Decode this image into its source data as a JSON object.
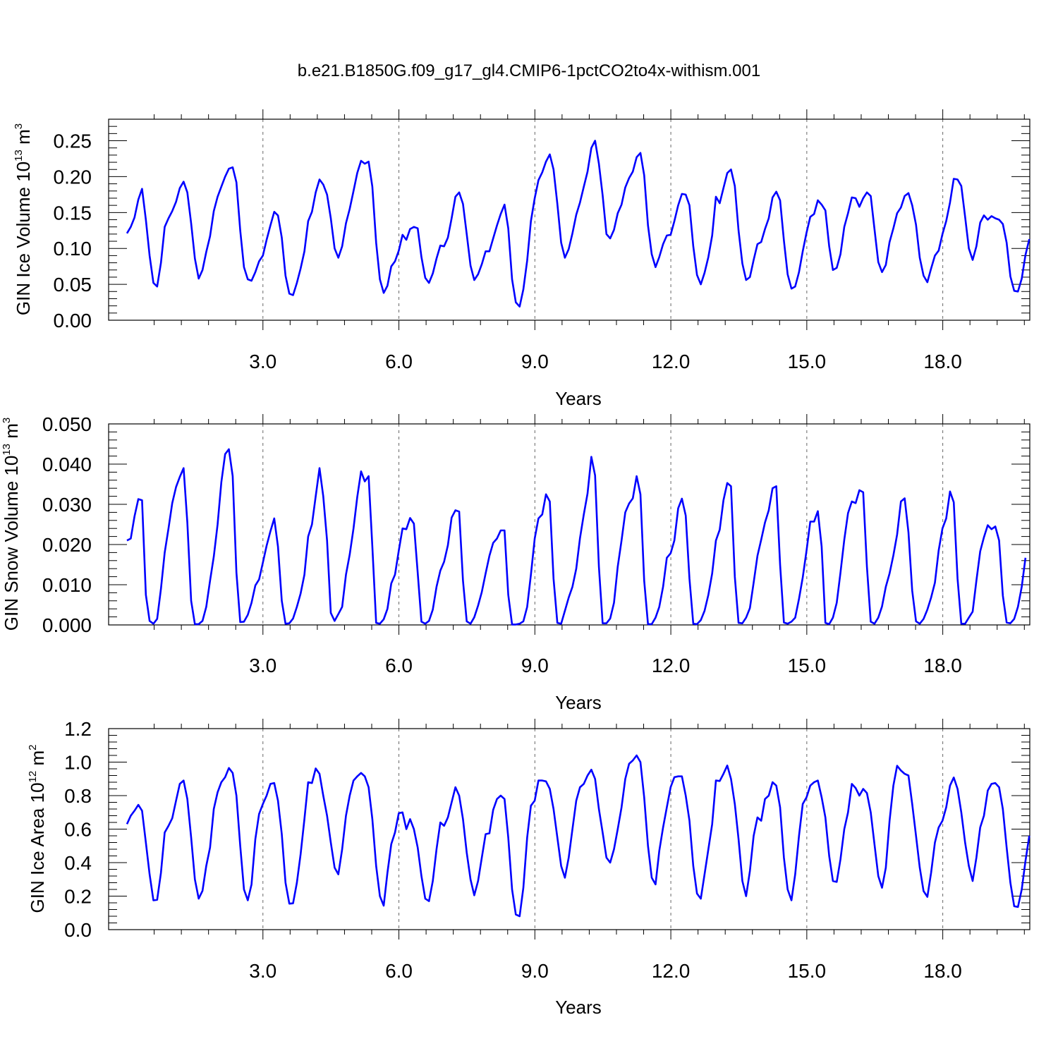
{
  "title": "b.e21.B1850G.f09_g17_gl4.CMIP6-1pctCO2to4x-withism.001",
  "colors": {
    "series": "#0000ff",
    "axis": "#000000",
    "grid": "#666666"
  },
  "chart_data": [
    {
      "type": "line",
      "name": "ice-volume",
      "ylabel": "GIN Ice Volume 10",
      "ylabel_exp": "13",
      "ylabel_unit": " m",
      "ylabel_unit_exp": "3",
      "xlabel": "Years",
      "xlim": [
        0,
        19.92
      ],
      "ylim": [
        0,
        0.28
      ],
      "xticks": [
        3,
        6,
        9,
        12,
        15,
        18
      ],
      "xtick_labels": [
        "3.0",
        "6.0",
        "9.0",
        "12.0",
        "15.0",
        "18.0"
      ],
      "yticks": [
        0,
        0.05,
        0.1,
        0.15,
        0.2,
        0.25
      ],
      "ytick_labels": [
        "0.00",
        "0.05",
        "0.10",
        "0.15",
        "0.20",
        "0.25"
      ],
      "grid": "vertical dashed at x ticks",
      "x_start": 0,
      "x_step": 0.0833,
      "values": [
        0.121,
        0.13,
        0.143,
        0.168,
        0.183,
        0.14,
        0.09,
        0.052,
        0.047,
        0.08,
        0.13,
        0.142,
        0.152,
        0.165,
        0.184,
        0.193,
        0.178,
        0.135,
        0.086,
        0.058,
        0.07,
        0.095,
        0.117,
        0.152,
        0.172,
        0.186,
        0.2,
        0.211,
        0.213,
        0.192,
        0.125,
        0.074,
        0.057,
        0.055,
        0.067,
        0.082,
        0.09,
        0.112,
        0.132,
        0.151,
        0.146,
        0.115,
        0.062,
        0.037,
        0.035,
        0.052,
        0.072,
        0.096,
        0.138,
        0.151,
        0.178,
        0.196,
        0.189,
        0.175,
        0.142,
        0.1,
        0.087,
        0.103,
        0.135,
        0.155,
        0.18,
        0.205,
        0.222,
        0.218,
        0.221,
        0.186,
        0.108,
        0.057,
        0.038,
        0.048,
        0.075,
        0.082,
        0.097,
        0.119,
        0.112,
        0.127,
        0.13,
        0.128,
        0.088,
        0.059,
        0.052,
        0.065,
        0.086,
        0.104,
        0.103,
        0.115,
        0.142,
        0.172,
        0.178,
        0.162,
        0.12,
        0.076,
        0.056,
        0.064,
        0.078,
        0.096,
        0.096,
        0.114,
        0.132,
        0.148,
        0.161,
        0.128,
        0.057,
        0.025,
        0.019,
        0.043,
        0.083,
        0.138,
        0.17,
        0.195,
        0.206,
        0.221,
        0.231,
        0.21,
        0.162,
        0.108,
        0.087,
        0.099,
        0.121,
        0.147,
        0.164,
        0.186,
        0.207,
        0.24,
        0.25,
        0.218,
        0.174,
        0.12,
        0.114,
        0.126,
        0.149,
        0.161,
        0.185,
        0.198,
        0.207,
        0.227,
        0.233,
        0.202,
        0.132,
        0.092,
        0.074,
        0.088,
        0.106,
        0.118,
        0.119,
        0.138,
        0.16,
        0.176,
        0.175,
        0.16,
        0.103,
        0.063,
        0.05,
        0.066,
        0.088,
        0.118,
        0.172,
        0.163,
        0.184,
        0.205,
        0.21,
        0.187,
        0.125,
        0.079,
        0.056,
        0.06,
        0.084,
        0.106,
        0.109,
        0.127,
        0.142,
        0.171,
        0.179,
        0.167,
        0.111,
        0.064,
        0.044,
        0.047,
        0.067,
        0.096,
        0.122,
        0.144,
        0.148,
        0.167,
        0.161,
        0.153,
        0.103,
        0.07,
        0.073,
        0.092,
        0.13,
        0.149,
        0.171,
        0.17,
        0.158,
        0.17,
        0.178,
        0.173,
        0.127,
        0.081,
        0.067,
        0.077,
        0.109,
        0.128,
        0.149,
        0.157,
        0.173,
        0.177,
        0.16,
        0.133,
        0.087,
        0.062,
        0.053,
        0.072,
        0.09,
        0.097,
        0.12,
        0.138,
        0.164,
        0.197,
        0.196,
        0.187,
        0.144,
        0.1,
        0.084,
        0.103,
        0.136,
        0.146,
        0.14,
        0.145,
        0.142,
        0.14,
        0.134,
        0.108,
        0.061,
        0.041,
        0.04,
        0.058,
        0.091,
        0.113
      ]
    },
    {
      "type": "line",
      "name": "snow-volume",
      "ylabel": "GIN Snow Volume 10",
      "ylabel_exp": "13",
      "ylabel_unit": " m",
      "ylabel_unit_exp": "3",
      "xlabel": "Years",
      "xlim": [
        0,
        19.92
      ],
      "ylim": [
        0,
        0.05
      ],
      "xticks": [
        3,
        6,
        9,
        12,
        15,
        18
      ],
      "xtick_labels": [
        "3.0",
        "6.0",
        "9.0",
        "12.0",
        "15.0",
        "18.0"
      ],
      "yticks": [
        0,
        0.01,
        0.02,
        0.03,
        0.04,
        0.05
      ],
      "ytick_labels": [
        "0.000",
        "0.010",
        "0.020",
        "0.030",
        "0.040",
        "0.050"
      ],
      "grid": "vertical dashed at x ticks",
      "x_start": 0,
      "x_step": 0.0833,
      "values": [
        0.021,
        0.0215,
        0.027,
        0.0313,
        0.031,
        0.0075,
        0.001,
        0.0003,
        0.0015,
        0.009,
        0.018,
        0.024,
        0.0303,
        0.0343,
        0.0368,
        0.039,
        0.0255,
        0.006,
        0.0002,
        0.0002,
        0.001,
        0.0045,
        0.011,
        0.017,
        0.025,
        0.0355,
        0.0425,
        0.0437,
        0.037,
        0.013,
        0.0007,
        0.0008,
        0.0025,
        0.0055,
        0.0098,
        0.0113,
        0.0155,
        0.0197,
        0.0233,
        0.0265,
        0.0195,
        0.006,
        0.0003,
        0.0004,
        0.0016,
        0.0045,
        0.0078,
        0.0125,
        0.022,
        0.025,
        0.032,
        0.039,
        0.032,
        0.021,
        0.003,
        0.001,
        0.0027,
        0.0045,
        0.0125,
        0.0175,
        0.024,
        0.0318,
        0.0382,
        0.0357,
        0.037,
        0.0195,
        0.0005,
        0.0003,
        0.0014,
        0.004,
        0.0103,
        0.0125,
        0.0185,
        0.024,
        0.0238,
        0.0266,
        0.0252,
        0.013,
        0.0008,
        0.0003,
        0.001,
        0.0038,
        0.0095,
        0.0135,
        0.0157,
        0.0198,
        0.0267,
        0.0285,
        0.0282,
        0.011,
        0.0009,
        0.0003,
        0.0019,
        0.0048,
        0.0082,
        0.0128,
        0.0172,
        0.0204,
        0.0215,
        0.0235,
        0.0235,
        0.0075,
        0.0001,
        0.0001,
        0.0003,
        0.0009,
        0.0045,
        0.0125,
        0.0215,
        0.0265,
        0.0275,
        0.0325,
        0.0307,
        0.0115,
        0.0005,
        0.0003,
        0.0035,
        0.0068,
        0.0095,
        0.014,
        0.0216,
        0.0275,
        0.0327,
        0.0418,
        0.0372,
        0.0145,
        0.0004,
        0.0004,
        0.0016,
        0.0055,
        0.0145,
        0.021,
        0.028,
        0.0302,
        0.0315,
        0.037,
        0.0325,
        0.011,
        0.0002,
        0.0002,
        0.0018,
        0.0045,
        0.0095,
        0.0167,
        0.0178,
        0.021,
        0.029,
        0.0314,
        0.0272,
        0.0115,
        0.0003,
        0.0002,
        0.0012,
        0.0035,
        0.0075,
        0.0128,
        0.021,
        0.0237,
        0.031,
        0.0353,
        0.0345,
        0.012,
        0.0005,
        0.0004,
        0.0018,
        0.0042,
        0.0105,
        0.0172,
        0.0212,
        0.0255,
        0.0285,
        0.034,
        0.0345,
        0.015,
        0.0006,
        0.0003,
        0.0008,
        0.0018,
        0.0065,
        0.0118,
        0.0185,
        0.0257,
        0.0257,
        0.0283,
        0.0195,
        0.0005,
        0.0002,
        0.0018,
        0.0055,
        0.013,
        0.0212,
        0.0278,
        0.0307,
        0.0303,
        0.0335,
        0.033,
        0.0145,
        0.0008,
        0.0003,
        0.0018,
        0.0046,
        0.0095,
        0.0128,
        0.0173,
        0.0225,
        0.0307,
        0.0315,
        0.023,
        0.0085,
        0.0009,
        0.0003,
        0.0015,
        0.0038,
        0.0068,
        0.0105,
        0.0185,
        0.024,
        0.0265,
        0.0332,
        0.0305,
        0.0115,
        0.0003,
        0.0003,
        0.0018,
        0.0033,
        0.011,
        0.0183,
        0.0218,
        0.0248,
        0.0238,
        0.0245,
        0.021,
        0.0073,
        0.0006,
        0.0004,
        0.0015,
        0.0045,
        0.0095,
        0.0167
      ]
    },
    {
      "type": "line",
      "name": "ice-area",
      "ylabel": "GIN Ice Area 10",
      "ylabel_exp": "12",
      "ylabel_unit": " m",
      "ylabel_unit_exp": "2",
      "xlabel": "Years",
      "xlim": [
        0,
        19.92
      ],
      "ylim": [
        0,
        1.2
      ],
      "xticks": [
        3,
        6,
        9,
        12,
        15,
        18
      ],
      "xtick_labels": [
        "3.0",
        "6.0",
        "9.0",
        "12.0",
        "15.0",
        "18.0"
      ],
      "yticks": [
        0,
        0.2,
        0.4,
        0.6,
        0.8,
        1.0,
        1.2
      ],
      "ytick_labels": [
        "0.0",
        "0.2",
        "0.4",
        "0.6",
        "0.8",
        "1.0",
        "1.2"
      ],
      "grid": "vertical dashed at x ticks",
      "x_start": 0,
      "x_step": 0.0833,
      "values": [
        0.63,
        0.68,
        0.71,
        0.745,
        0.71,
        0.52,
        0.33,
        0.175,
        0.178,
        0.34,
        0.58,
        0.62,
        0.665,
        0.77,
        0.87,
        0.89,
        0.78,
        0.55,
        0.3,
        0.185,
        0.232,
        0.38,
        0.49,
        0.72,
        0.82,
        0.88,
        0.91,
        0.965,
        0.935,
        0.8,
        0.5,
        0.24,
        0.175,
        0.27,
        0.54,
        0.69,
        0.75,
        0.8,
        0.87,
        0.875,
        0.77,
        0.57,
        0.28,
        0.155,
        0.157,
        0.28,
        0.45,
        0.66,
        0.88,
        0.875,
        0.962,
        0.93,
        0.8,
        0.68,
        0.52,
        0.37,
        0.33,
        0.48,
        0.68,
        0.8,
        0.89,
        0.915,
        0.935,
        0.915,
        0.85,
        0.66,
        0.38,
        0.2,
        0.143,
        0.34,
        0.51,
        0.58,
        0.695,
        0.7,
        0.6,
        0.66,
        0.6,
        0.49,
        0.32,
        0.185,
        0.17,
        0.29,
        0.48,
        0.64,
        0.62,
        0.67,
        0.76,
        0.85,
        0.8,
        0.66,
        0.46,
        0.3,
        0.205,
        0.29,
        0.43,
        0.57,
        0.575,
        0.715,
        0.78,
        0.8,
        0.78,
        0.55,
        0.24,
        0.09,
        0.08,
        0.25,
        0.55,
        0.74,
        0.77,
        0.89,
        0.89,
        0.885,
        0.84,
        0.72,
        0.55,
        0.38,
        0.31,
        0.43,
        0.6,
        0.77,
        0.85,
        0.87,
        0.92,
        0.955,
        0.9,
        0.72,
        0.58,
        0.43,
        0.4,
        0.48,
        0.6,
        0.73,
        0.9,
        0.99,
        1.01,
        1.04,
        1.0,
        0.79,
        0.5,
        0.31,
        0.27,
        0.47,
        0.61,
        0.73,
        0.85,
        0.91,
        0.915,
        0.915,
        0.8,
        0.65,
        0.38,
        0.215,
        0.185,
        0.33,
        0.48,
        0.63,
        0.89,
        0.887,
        0.93,
        0.98,
        0.9,
        0.75,
        0.54,
        0.29,
        0.2,
        0.35,
        0.56,
        0.67,
        0.65,
        0.78,
        0.8,
        0.88,
        0.86,
        0.73,
        0.43,
        0.24,
        0.175,
        0.33,
        0.56,
        0.75,
        0.79,
        0.86,
        0.88,
        0.89,
        0.79,
        0.67,
        0.44,
        0.29,
        0.285,
        0.42,
        0.6,
        0.7,
        0.87,
        0.845,
        0.8,
        0.84,
        0.815,
        0.7,
        0.51,
        0.32,
        0.25,
        0.37,
        0.65,
        0.86,
        0.978,
        0.95,
        0.93,
        0.92,
        0.75,
        0.56,
        0.37,
        0.23,
        0.196,
        0.34,
        0.52,
        0.61,
        0.65,
        0.73,
        0.86,
        0.908,
        0.84,
        0.7,
        0.52,
        0.38,
        0.29,
        0.43,
        0.61,
        0.68,
        0.83,
        0.87,
        0.875,
        0.85,
        0.72,
        0.49,
        0.28,
        0.14,
        0.135,
        0.24,
        0.41,
        0.56
      ]
    }
  ]
}
